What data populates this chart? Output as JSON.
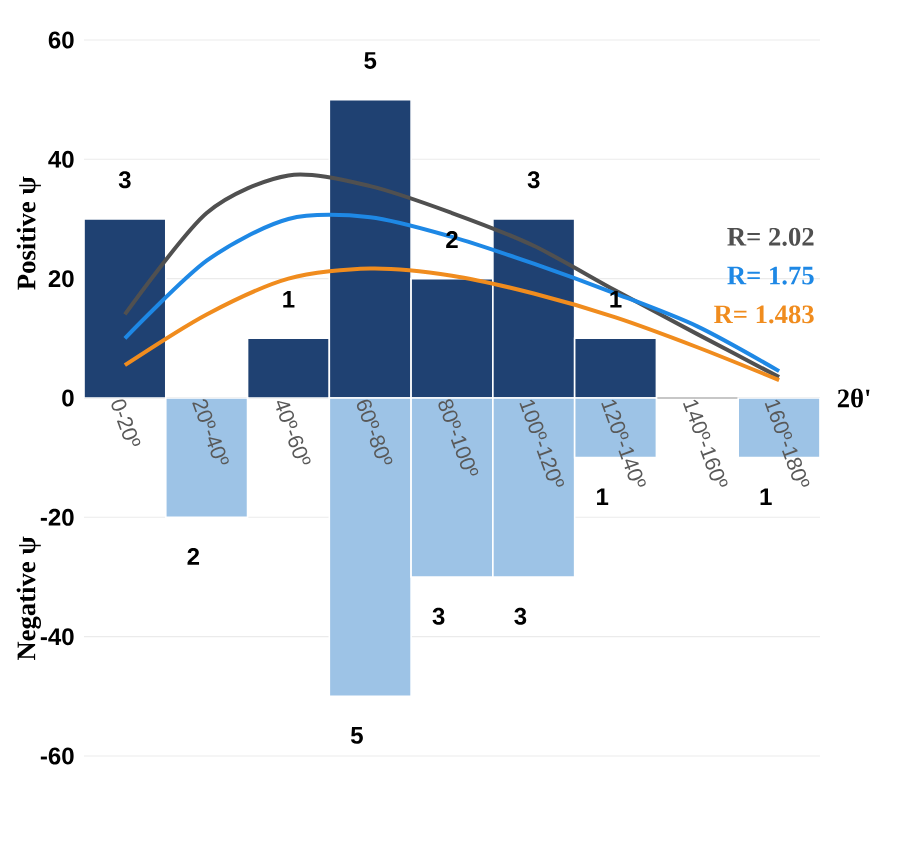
{
  "chart_data": {
    "type": "bar",
    "stacked": true,
    "xlabel": "2θ'",
    "ylabel": "Positive ψ",
    "annotations": [
      "Negative ψ",
      {
        "text": "3",
        "x": "0-20º",
        "y": 30
      },
      {
        "text": "1",
        "x": "40º-60º",
        "y": 10
      },
      {
        "text": "5",
        "x": "60º-80º",
        "y": 50
      },
      {
        "text": "2",
        "x": "80º-100º",
        "y": 20
      },
      {
        "text": "3",
        "x": "100º-120º",
        "y": 30
      },
      {
        "text": "1",
        "x": "120º-140º",
        "y": 10
      },
      {
        "text": "2",
        "x": "20º-40º",
        "y": -20
      },
      {
        "text": "5",
        "x": "60º-80º",
        "y": -50
      },
      {
        "text": "3",
        "x": "80º-100º",
        "y": -30
      },
      {
        "text": "3",
        "x": "100º-120º",
        "y": -30
      },
      {
        "text": "1",
        "x": "120º-140º",
        "y": -10
      },
      {
        "text": "1",
        "x": "160º-180º",
        "y": -10
      }
    ],
    "categories": [
      "0-20º",
      "20º-40º",
      "40º-60º",
      "60º-80º",
      "80º-100º",
      "100º-120º",
      "120º-140º",
      "140º-160º",
      "160º-180º"
    ],
    "series": [
      {
        "color": "#1f4172",
        "values": [
          30,
          null,
          10,
          50,
          20,
          30,
          10,
          null,
          null
        ]
      },
      {
        "color": "#9dc3e6",
        "values": [
          null,
          -20,
          null,
          -50,
          -30,
          -30,
          -10,
          null,
          -10
        ]
      },
      {
        "type": "line",
        "name": "R= 2.02",
        "color": "#505050",
        "values": [
          14,
          31,
          37.3,
          35.5,
          31,
          25.5,
          18,
          10.7,
          3.5
        ]
      },
      {
        "type": "line",
        "name": "R= 1.75",
        "color": "#1e88e5",
        "values": [
          10,
          23,
          30,
          30.3,
          27,
          22.5,
          17.5,
          12,
          4.5
        ]
      },
      {
        "type": "line",
        "name": "R= 1.483",
        "color": "#f08c1e",
        "values": [
          5.5,
          14,
          20,
          21.7,
          20.5,
          17.5,
          13.5,
          8.5,
          3
        ]
      }
    ],
    "ylim": [
      -60,
      60
    ],
    "yticks": [
      -60,
      -40,
      -20,
      0,
      20,
      40,
      60
    ],
    "grid": "y"
  }
}
